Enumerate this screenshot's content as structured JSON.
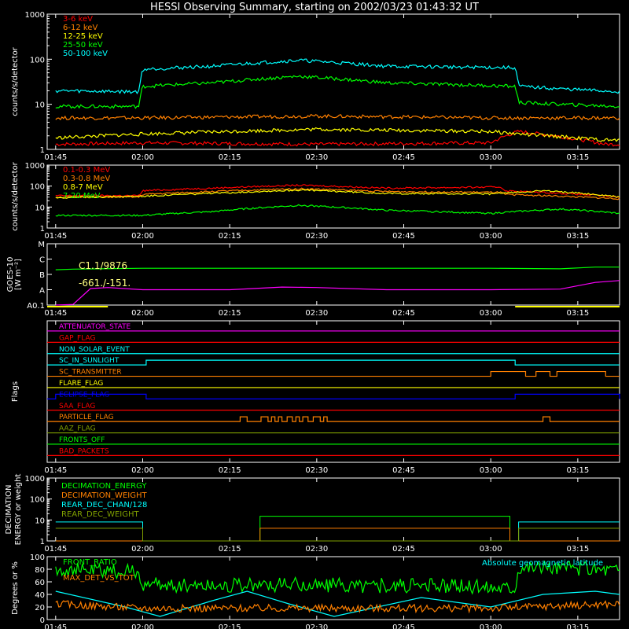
{
  "title": "HESSI Observing Summary, starting on 2002/03/23 01:43:32 UT",
  "colors": {
    "red": "#ff0000",
    "orange": "#ff8000",
    "yellow": "#ffff00",
    "green": "#00ff00",
    "cyan": "#00ffff",
    "magenta": "#ff00ff",
    "blue": "#0000ff",
    "olive": "#80a000",
    "white": "#ffffff"
  },
  "time_ticks": [
    "01:45",
    "02:00",
    "02:15",
    "02:30",
    "02:45",
    "03:00",
    "03:15"
  ],
  "chart_data": [
    {
      "id": "p1",
      "type": "line",
      "scale": "log",
      "ylabel": "counts/s/detector",
      "ylim": [
        1,
        1000
      ],
      "yticks": [
        "1",
        "10",
        "100",
        "1000"
      ],
      "legend": [
        "3-6 keV",
        "6-12 keV",
        "12-25 keV",
        "25-50 keV",
        "50-100 keV"
      ],
      "series": [
        {
          "name": "3-6 keV",
          "color": "red",
          "x": [
            1.75,
            2.0,
            2.5,
            3.0,
            3.08,
            3.33,
            3.37
          ],
          "values": [
            1.3,
            1.4,
            1.3,
            1.4,
            2.5,
            1.3,
            1.3
          ]
        },
        {
          "name": "6-12 keV",
          "color": "orange",
          "x": [
            1.75,
            2.0,
            2.5,
            3.0,
            3.08,
            3.33,
            3.37
          ],
          "values": [
            5,
            5,
            5.5,
            5,
            5,
            5,
            5
          ]
        },
        {
          "name": "12-25 keV",
          "color": "yellow",
          "x": [
            1.75,
            2.0,
            2.5,
            3.0,
            3.08,
            3.33,
            3.37
          ],
          "values": [
            1.8,
            2.2,
            2.8,
            2.5,
            2.2,
            1.6,
            1.6
          ]
        },
        {
          "name": "25-50 keV",
          "color": "green",
          "x": [
            1.75,
            1.99,
            2.0,
            2.2,
            2.45,
            2.7,
            3.07,
            3.08,
            3.2,
            3.37
          ],
          "values": [
            9,
            9,
            25,
            30,
            42,
            30,
            25,
            11,
            10,
            9
          ]
        },
        {
          "name": "50-100 keV",
          "color": "cyan",
          "x": [
            1.75,
            1.99,
            2.0,
            2.2,
            2.45,
            2.7,
            3.07,
            3.08,
            3.2,
            3.37
          ],
          "values": [
            20,
            19,
            60,
            70,
            95,
            70,
            65,
            25,
            22,
            19
          ]
        }
      ]
    },
    {
      "id": "p2",
      "type": "line",
      "scale": "log",
      "ylabel": "counts/s/detector",
      "ylim": [
        1,
        1000
      ],
      "yticks": [
        "1",
        "10",
        "100",
        "1000"
      ],
      "legend": [
        "0.1-0.3 MeV",
        "0.3-0.8 MeV",
        "0.8-7 MeV",
        "7-20 MeV"
      ],
      "series": [
        {
          "name": "0.1-0.3 MeV",
          "color": "red",
          "x": [
            1.75,
            1.99,
            2.0,
            2.2,
            2.45,
            2.7,
            3.03,
            3.04,
            3.37
          ],
          "values": [
            35,
            35,
            60,
            80,
            110,
            80,
            90,
            60,
            30
          ]
        },
        {
          "name": "0.3-0.8 MeV",
          "color": "orange",
          "x": [
            1.75,
            1.99,
            2.0,
            2.2,
            2.45,
            2.7,
            3.03,
            3.04,
            3.37
          ],
          "values": [
            30,
            30,
            40,
            55,
            75,
            55,
            50,
            40,
            25
          ]
        },
        {
          "name": "0.8-7 MeV",
          "color": "yellow",
          "x": [
            1.75,
            2.0,
            2.2,
            2.45,
            2.7,
            3.0,
            3.15,
            3.37
          ],
          "values": [
            28,
            33,
            45,
            65,
            45,
            42,
            60,
            30
          ]
        },
        {
          "name": "7-20 MeV",
          "color": "green",
          "x": [
            1.75,
            2.0,
            2.2,
            2.45,
            2.7,
            3.0,
            3.2,
            3.37
          ],
          "values": [
            4,
            4,
            6,
            12,
            7,
            5,
            8,
            5
          ]
        }
      ]
    },
    {
      "id": "p3",
      "type": "line",
      "scale": "log",
      "ylabel": "GOES-10 [W m⁻²]",
      "ylim": [
        1e-08,
        0.0001
      ],
      "yticks": [
        "A0.1",
        "A",
        "B",
        "C",
        "M"
      ],
      "annotations": [
        "C1.1/9876",
        "-661./-151."
      ],
      "series": [
        {
          "name": "GOES high",
          "color": "green",
          "x": [
            1.75,
            1.8,
            2.0,
            2.5,
            3.0,
            3.2,
            3.3,
            3.37
          ],
          "values": [
            2e-06,
            2.2e-06,
            2.5e-06,
            2.5e-06,
            2.5e-06,
            2.3e-06,
            3e-06,
            3e-06
          ]
        },
        {
          "name": "GOES low",
          "color": "magenta",
          "x": [
            1.75,
            1.8,
            1.85,
            1.9,
            2.0,
            2.25,
            2.4,
            2.5,
            2.7,
            3.0,
            3.2,
            3.3,
            3.37
          ],
          "values": [
            1e-08,
            1.1e-08,
            1.2e-07,
            1.4e-07,
            1e-07,
            1e-07,
            1.5e-07,
            1.4e-07,
            1e-07,
            1e-07,
            1.1e-07,
            3e-07,
            4e-07
          ]
        }
      ]
    },
    {
      "id": "p4",
      "type": "flags",
      "ylabel": "Flags",
      "flags": [
        {
          "name": "ATTENUATOR_STATE",
          "color": "magenta",
          "segments": []
        },
        {
          "name": "GAP_FLAG",
          "color": "red",
          "segments": []
        },
        {
          "name": "NON_SOLAR_EVENT",
          "color": "cyan",
          "segments": []
        },
        {
          "name": "SC_IN_SUNLIGHT",
          "color": "cyan",
          "segments": [
            [
              2.01,
              3.07
            ]
          ]
        },
        {
          "name": "SC_TRANSMITTER",
          "color": "orange",
          "segments": [
            [
              3.0,
              3.1
            ],
            [
              3.13,
              3.17
            ],
            [
              3.19,
              3.33
            ]
          ]
        },
        {
          "name": "FLARE_FLAG",
          "color": "yellow",
          "segments": []
        },
        {
          "name": "ECLIPSE_FLAG",
          "color": "blue",
          "segments": [
            [
              1.75,
              2.01
            ],
            [
              3.07,
              3.37
            ]
          ]
        },
        {
          "name": "SAA_FLAG",
          "color": "red",
          "segments": []
        },
        {
          "name": "PARTICLE_FLAG",
          "color": "orange",
          "segments": [
            [
              2.28,
              2.3
            ],
            [
              2.34,
              2.36
            ],
            [
              2.37,
              2.38
            ],
            [
              2.39,
              2.4
            ],
            [
              2.415,
              2.43
            ],
            [
              2.44,
              2.45
            ],
            [
              2.46,
              2.475
            ],
            [
              2.49,
              2.51
            ],
            [
              2.52,
              2.53
            ],
            [
              3.15,
              3.17
            ]
          ]
        },
        {
          "name": "AAZ_FLAG",
          "color": "olive",
          "segments": []
        },
        {
          "name": "FRONTS_OFF",
          "color": "green",
          "segments": []
        },
        {
          "name": "BAD_PACKETS",
          "color": "red",
          "segments": []
        }
      ]
    },
    {
      "id": "p5",
      "type": "line",
      "scale": "log",
      "ylabel": "DECIMATION ENERGY or weight",
      "ylim": [
        1,
        1000
      ],
      "yticks": [
        "1",
        "10",
        "100",
        "1000"
      ],
      "legend": [
        "DECIMATION_ENERGY",
        "DECIMATION_WEIGHT",
        "REAR_DEC_CHAN/128",
        "REAR_DEC_WEIGHT"
      ],
      "series": [
        {
          "name": "DECIMATION_ENERGY",
          "color": "green",
          "x": [
            1.75,
            2.337,
            2.337,
            3.055,
            3.055,
            3.37
          ],
          "values": [
            1,
            1,
            15,
            15,
            1,
            1
          ]
        },
        {
          "name": "DECIMATION_WEIGHT",
          "color": "orange",
          "x": [
            1.75,
            2.337,
            2.337,
            3.055,
            3.055,
            3.37
          ],
          "values": [
            1,
            1,
            4,
            4,
            1,
            1
          ]
        },
        {
          "name": "REAR_DEC_CHAN/128",
          "color": "cyan",
          "x": [
            1.75,
            2.0,
            2.0,
            3.08,
            3.08,
            3.37
          ],
          "values": [
            8,
            8,
            1,
            1,
            8,
            8
          ]
        },
        {
          "name": "REAR_DEC_WEIGHT",
          "color": "olive",
          "x": [
            1.75,
            2.0,
            2.0,
            3.08,
            3.08,
            3.37
          ],
          "values": [
            4,
            4,
            1,
            1,
            4,
            4
          ]
        }
      ]
    },
    {
      "id": "p6",
      "type": "line",
      "scale": "linear",
      "ylabel": "Degrees or %",
      "ylim": [
        0,
        100
      ],
      "yticks": [
        "0",
        "20",
        "40",
        "60",
        "80",
        "100"
      ],
      "legend": [
        "FRONT_RATIO",
        "Absolute geomagnetic latitude",
        "MAX_DET_VS_TOT"
      ],
      "series": [
        {
          "name": "FRONT_RATIO",
          "color": "green",
          "x": [
            1.75,
            1.99,
            2.0,
            2.5,
            3.07,
            3.08,
            3.37
          ],
          "values": [
            80,
            75,
            55,
            55,
            52,
            85,
            80
          ]
        },
        {
          "name": "Absolute geomagnetic latitude",
          "color": "cyan",
          "x": [
            1.75,
            1.95,
            2.05,
            2.2,
            2.3,
            2.42,
            2.55,
            2.8,
            3.0,
            3.15,
            3.3,
            3.37
          ],
          "values": [
            45,
            20,
            5,
            30,
            45,
            25,
            5,
            35,
            20,
            40,
            45,
            40
          ]
        },
        {
          "name": "MAX_DET_VS_TOT",
          "color": "orange",
          "x": [
            1.75,
            2.0,
            2.5,
            3.0,
            3.37
          ],
          "values": [
            25,
            18,
            18,
            18,
            25
          ]
        }
      ]
    }
  ]
}
